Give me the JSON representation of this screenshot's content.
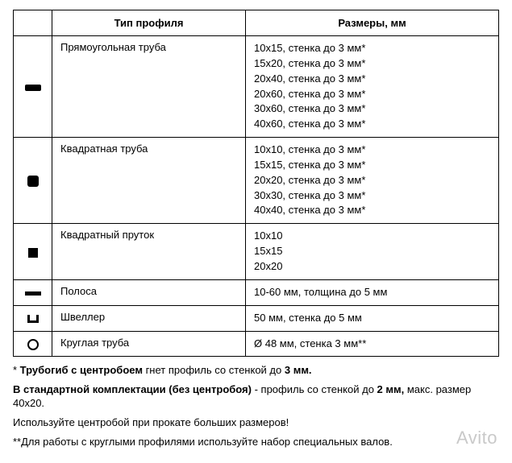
{
  "table": {
    "headers": {
      "icon": "",
      "type": "Тип профиля",
      "size": "Размеры, мм"
    },
    "rows": [
      {
        "icon": "rect-tube",
        "type": "Прямоугольная труба",
        "sizes": [
          "10х15, стенка до 3 мм*",
          "15х20, стенка до 3 мм*",
          "20х40, стенка до 3 мм*",
          "20х60, стенка до 3 мм*",
          "30х60, стенка до 3 мм*",
          "40х60, стенка до 3 мм*"
        ]
      },
      {
        "icon": "sq-tube",
        "type": "Квадратная труба",
        "sizes": [
          "10х10, стенка до 3 мм*",
          "15х15, стенка до 3 мм*",
          "20х20, стенка до 3 мм*",
          "30х30, стенка до 3 мм*",
          "40х40, стенка до 3 мм*"
        ]
      },
      {
        "icon": "sq-bar",
        "type": "Квадратный пруток",
        "sizes": [
          "10х10",
          "15х15",
          "20х20"
        ]
      },
      {
        "icon": "strip",
        "type": "Полоса",
        "sizes": [
          "10-60 мм, толщина до 5 мм"
        ]
      },
      {
        "icon": "channel",
        "type": "Швеллер",
        "sizes": [
          "50 мм, стенка до 5 мм"
        ]
      },
      {
        "icon": "round-tube",
        "type": "Круглая труба",
        "sizes": [
          "Ø 48 мм, стенка 3 мм**"
        ]
      }
    ]
  },
  "notes": {
    "n1_pre": "* ",
    "n1_b": "Трубогиб с центробоем",
    "n1_mid": " гнет профиль со стенкой до ",
    "n1_b2": "3 мм.",
    "n2_b": "В стандартной комплектации (без центробоя)",
    "n2_mid": " - профиль со стенкой до ",
    "n2_b2": "2 мм,",
    "n2_tail": " макс. размер 40х20.",
    "n3": "Используйте центробой при прокате больших размеров!",
    "n4": "**Для работы с круглыми профилями используйте набор специальных валов."
  },
  "watermark": "Avito"
}
